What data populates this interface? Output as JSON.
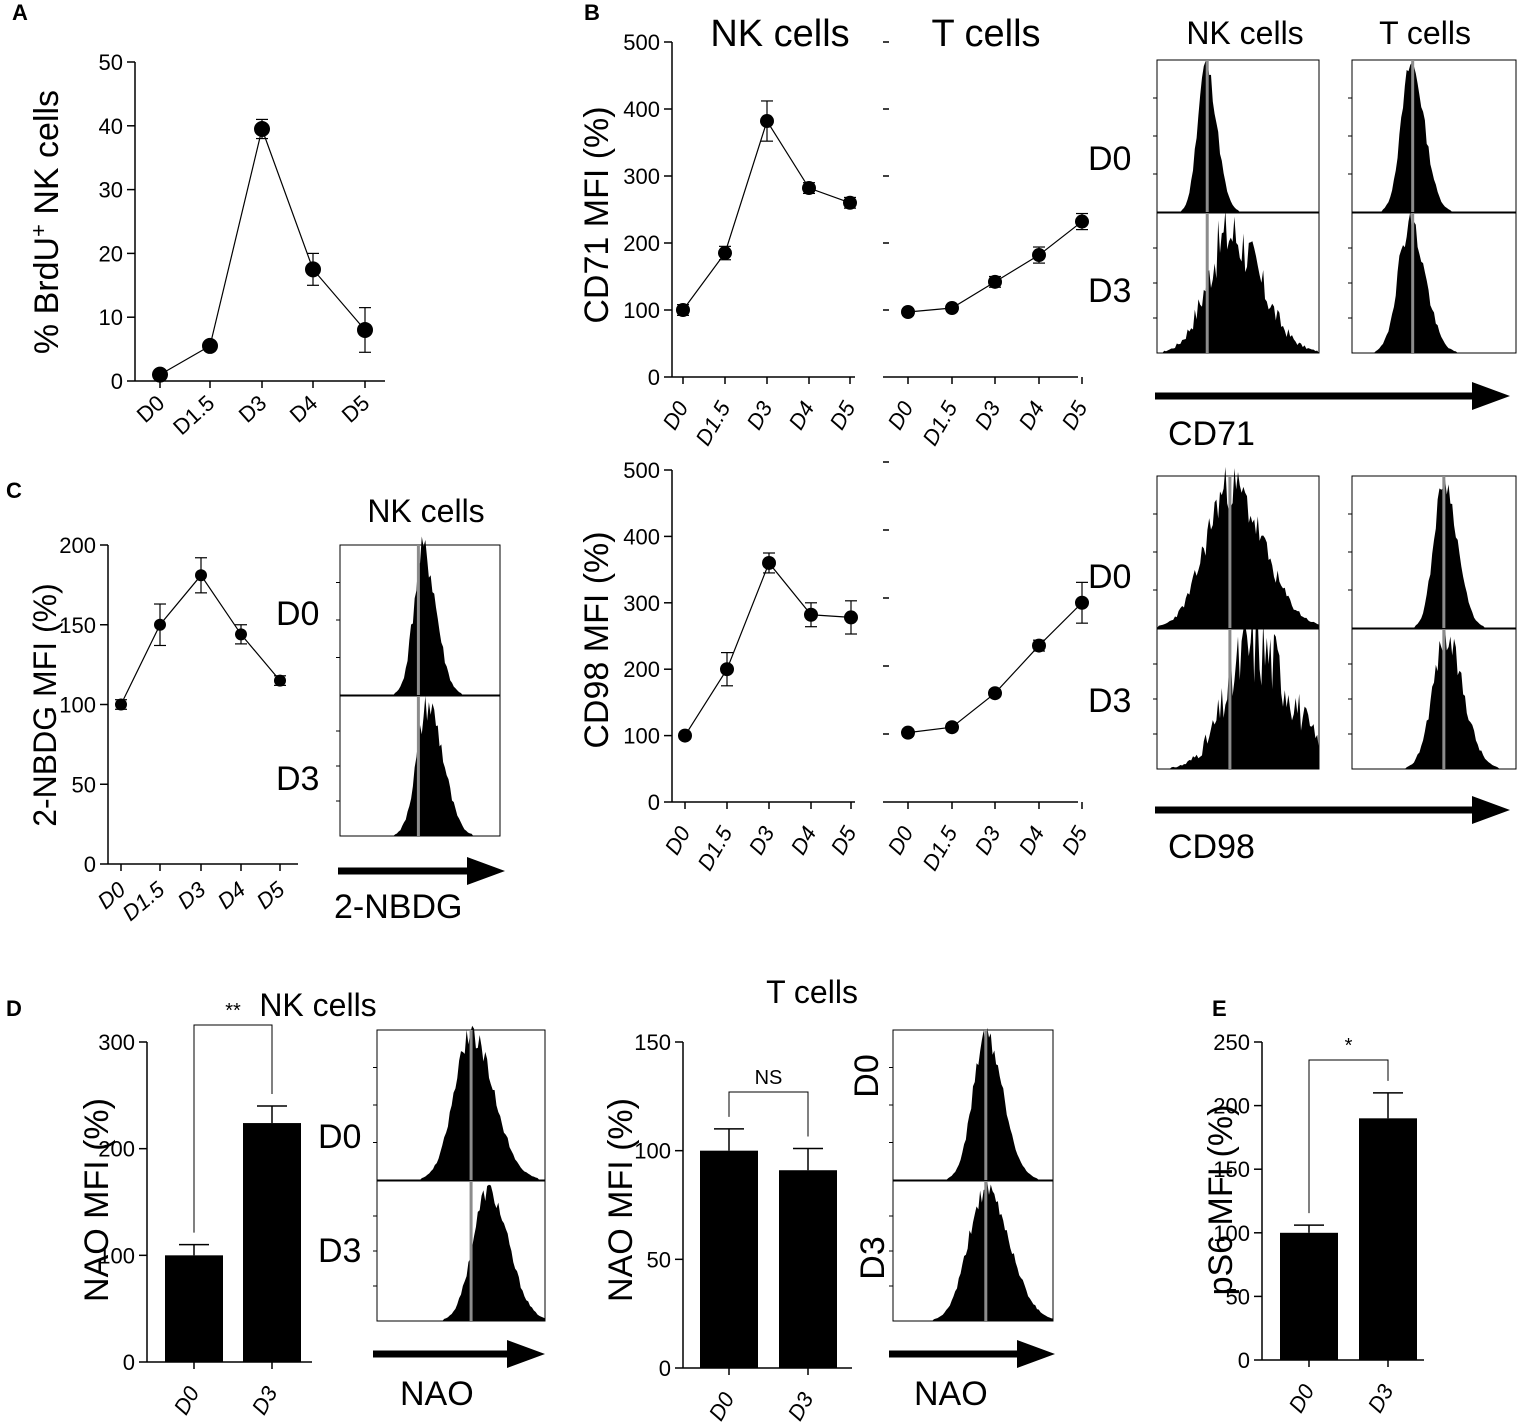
{
  "chart_data": [
    {
      "id": "A",
      "type": "line",
      "panel_label": "A",
      "ylabel": "% BrdU",
      "ylabel_superscript": "+",
      "ylabel_tail": " NK cells",
      "categories": [
        "D0",
        "D1.5",
        "D3",
        "D4",
        "D5"
      ],
      "values": [
        1,
        5.5,
        39.5,
        17.5,
        8
      ],
      "errors": [
        0.5,
        0.5,
        1.5,
        2.5,
        3.5
      ],
      "ylim": [
        0,
        50
      ],
      "yticks": [
        "0",
        "10",
        "20",
        "30",
        "40",
        "50"
      ]
    },
    {
      "id": "B1",
      "type": "line",
      "panel_label": "B",
      "title": "NK cells",
      "ylabel": "CD71 MFI (%)",
      "categories": [
        "D0",
        "D1.5",
        "D3",
        "D4",
        "D5"
      ],
      "values": [
        100,
        185,
        382,
        282,
        260
      ],
      "errors": [
        8,
        10,
        30,
        8,
        8
      ],
      "ylim": [
        0,
        500
      ],
      "yticks": [
        "0",
        "100",
        "200",
        "300",
        "400",
        "500"
      ]
    },
    {
      "id": "B2",
      "type": "line",
      "title": "T cells",
      "categories": [
        "D0",
        "D1.5",
        "D3",
        "D4",
        "D5"
      ],
      "values": [
        97,
        103,
        142,
        182,
        232
      ],
      "errors": [
        5,
        5,
        8,
        12,
        12
      ],
      "ylim": [
        0,
        500
      ]
    },
    {
      "id": "B3",
      "type": "line",
      "ylabel": "CD98 MFI (%)",
      "categories": [
        "D0",
        "D1.5",
        "D3",
        "D4",
        "D5"
      ],
      "values": [
        100,
        200,
        360,
        282,
        278
      ],
      "errors": [
        5,
        25,
        15,
        18,
        25
      ],
      "ylim": [
        0,
        500
      ],
      "yticks": [
        "0",
        "100",
        "200",
        "300",
        "400",
        "500"
      ]
    },
    {
      "id": "B4",
      "type": "line",
      "categories": [
        "D0",
        "D1.5",
        "D3",
        "D4",
        "D5"
      ],
      "values": [
        102,
        110,
        160,
        230,
        293
      ],
      "errors": [
        5,
        5,
        5,
        8,
        30
      ],
      "ylim": [
        0,
        500
      ]
    },
    {
      "id": "C",
      "type": "line",
      "panel_label": "C",
      "ylabel": "2-NBDG MFI (%)",
      "categories": [
        "D0",
        "D1.5",
        "D3",
        "D4",
        "D5"
      ],
      "values": [
        100,
        150,
        181,
        144,
        115
      ],
      "errors": [
        3,
        13,
        11,
        6,
        3
      ],
      "ylim": [
        0,
        200
      ],
      "yticks": [
        "0",
        "50",
        "100",
        "150",
        "200"
      ]
    },
    {
      "id": "D1",
      "type": "bar",
      "panel_label": "D",
      "title": "NK cells",
      "ylabel": "NAO MFI (%)",
      "categories": [
        "D0",
        "D3"
      ],
      "values": [
        100,
        224
      ],
      "errors": [
        10,
        16
      ],
      "ylim": [
        0,
        300
      ],
      "yticks": [
        "0",
        "100",
        "200",
        "300"
      ],
      "significance": "**"
    },
    {
      "id": "D2",
      "type": "bar",
      "title": "T cells",
      "ylabel": "NAO MFI (%)",
      "categories": [
        "D0",
        "D3"
      ],
      "values": [
        100,
        91
      ],
      "errors": [
        10,
        10
      ],
      "ylim": [
        0,
        150
      ],
      "yticks": [
        "0",
        "50",
        "100",
        "150"
      ],
      "significance": "NS"
    },
    {
      "id": "E",
      "type": "bar",
      "panel_label": "E",
      "ylabel": "pS6 MFI (%)",
      "categories": [
        "D0",
        "D3"
      ],
      "values": [
        100,
        190
      ],
      "errors": [
        6,
        20
      ],
      "ylim": [
        0,
        250
      ],
      "yticks": [
        "0",
        "50",
        "100",
        "150",
        "200",
        "250"
      ],
      "significance": "*"
    }
  ],
  "histograms": {
    "b_header_nk": "NK cells",
    "b_header_t": "T cells",
    "c_header": "NK cells",
    "day_labels": [
      "D0",
      "D3"
    ],
    "markers": {
      "cd71": "CD71",
      "cd98": "CD98",
      "nbdg": "2-NBDG",
      "nao_nk": "NAO",
      "nao_t": "NAO"
    }
  },
  "colors": {
    "ink": "#000000",
    "ref_line": "#8c8c8c",
    "background": "#ffffff"
  }
}
